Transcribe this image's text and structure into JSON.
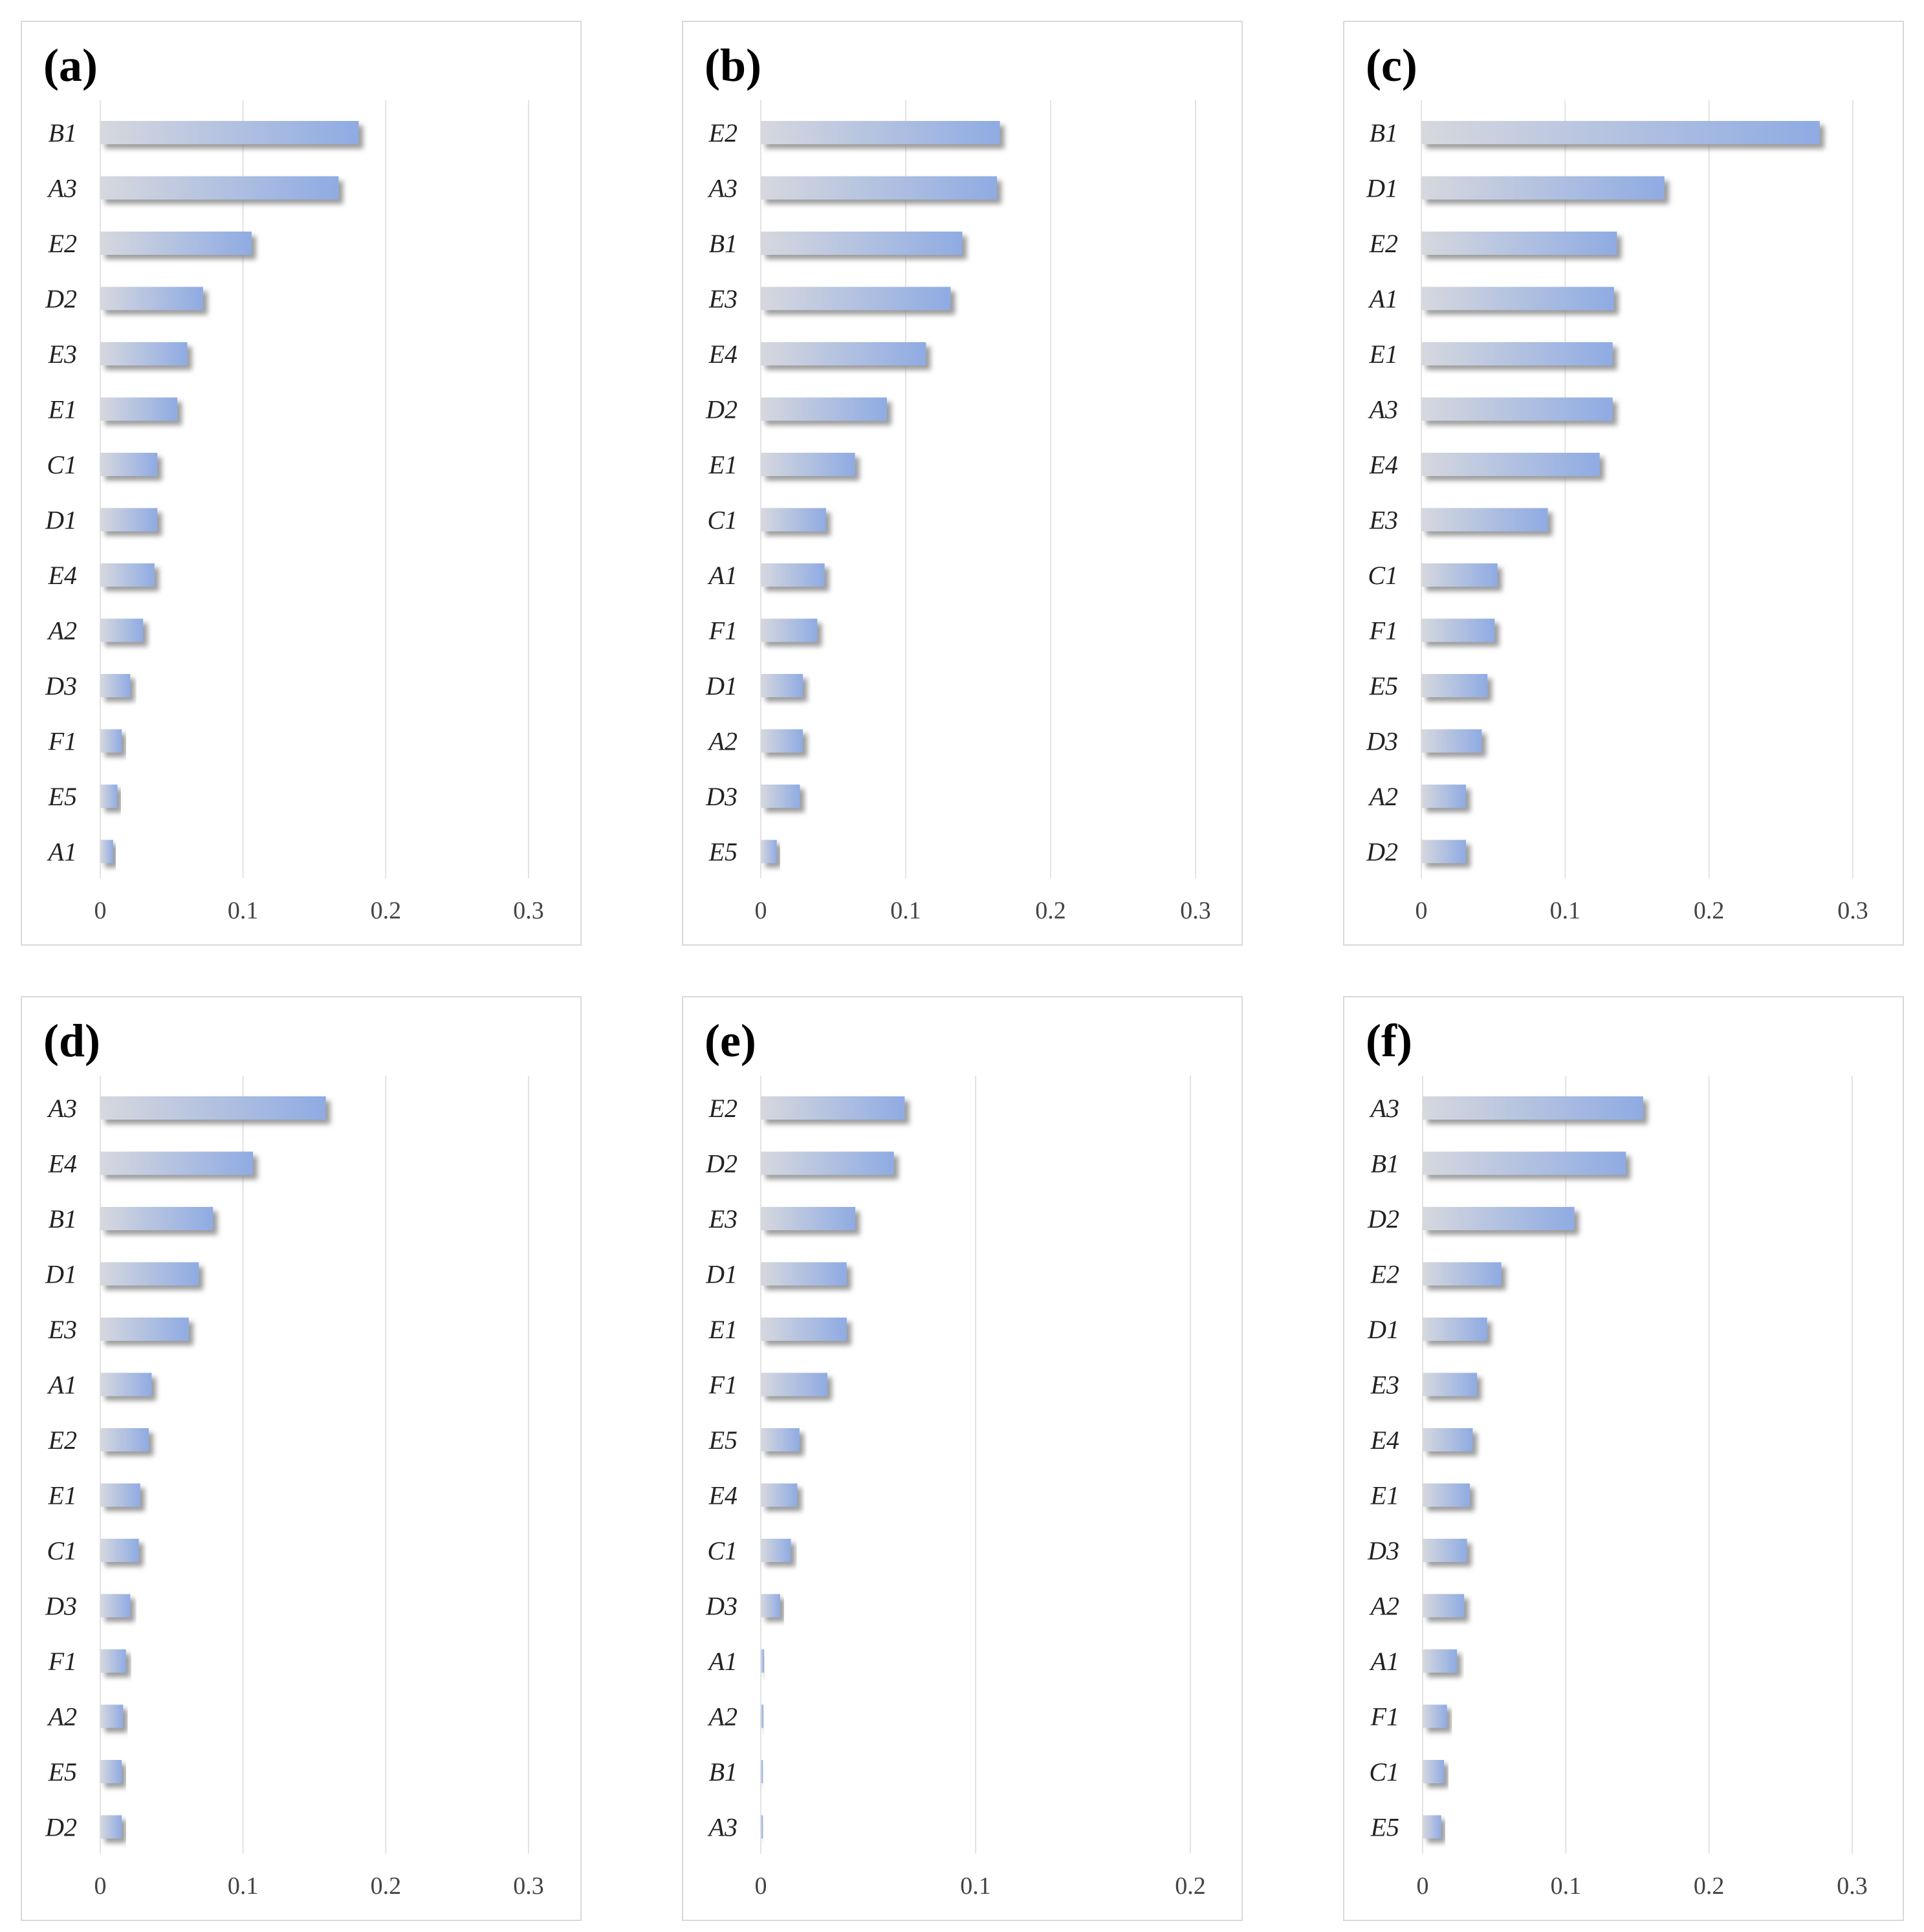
{
  "colors": {
    "bar_start": "#d6d8de",
    "bar_end": "#8fabe3",
    "shadow": "#7b7b7b",
    "grid": "#e3e3e3",
    "frame": "#d9d9d9"
  },
  "chart_data": [
    {
      "type": "bar",
      "orientation": "horizontal",
      "panel": "(a)",
      "categories": [
        "B1",
        "A3",
        "E2",
        "D2",
        "E3",
        "E1",
        "C1",
        "D1",
        "E4",
        "A2",
        "D3",
        "F1",
        "E5",
        "A1"
      ],
      "values": [
        0.181,
        0.167,
        0.106,
        0.072,
        0.061,
        0.054,
        0.04,
        0.04,
        0.038,
        0.03,
        0.021,
        0.015,
        0.012,
        0.009
      ],
      "xlim": [
        0,
        0.3
      ],
      "xticks": [
        0,
        0.1,
        0.2,
        0.3
      ],
      "xtick_labels": [
        "0",
        "0.1",
        "0.2",
        "0.3"
      ],
      "grid": true
    },
    {
      "type": "bar",
      "orientation": "horizontal",
      "panel": "(b)",
      "categories": [
        "E2",
        "A3",
        "B1",
        "E3",
        "E4",
        "D2",
        "E1",
        "C1",
        "A1",
        "F1",
        "D1",
        "A2",
        "D3",
        "E5"
      ],
      "values": [
        0.165,
        0.163,
        0.139,
        0.131,
        0.114,
        0.087,
        0.065,
        0.045,
        0.044,
        0.039,
        0.029,
        0.029,
        0.027,
        0.011
      ],
      "xlim": [
        0,
        0.3
      ],
      "xticks": [
        0,
        0.1,
        0.2,
        0.3
      ],
      "xtick_labels": [
        "0",
        "0.1",
        "0.2",
        "0.3"
      ],
      "grid": true
    },
    {
      "type": "bar",
      "orientation": "horizontal",
      "panel": "(c)",
      "categories": [
        "B1",
        "D1",
        "E2",
        "A1",
        "E1",
        "A3",
        "E4",
        "E3",
        "C1",
        "F1",
        "E5",
        "D3",
        "A2",
        "D2"
      ],
      "values": [
        0.277,
        0.169,
        0.136,
        0.134,
        0.133,
        0.133,
        0.124,
        0.088,
        0.053,
        0.051,
        0.046,
        0.042,
        0.031,
        0.031
      ],
      "xlim": [
        0,
        0.3
      ],
      "xticks": [
        0,
        0.1,
        0.2,
        0.3
      ],
      "xtick_labels": [
        "0",
        "0.1",
        "0.2",
        "0.3"
      ],
      "grid": true
    },
    {
      "type": "bar",
      "orientation": "horizontal",
      "panel": "(d)",
      "categories": [
        "A3",
        "E4",
        "B1",
        "D1",
        "E3",
        "A1",
        "E2",
        "E1",
        "C1",
        "D3",
        "F1",
        "A2",
        "E5",
        "D2"
      ],
      "values": [
        0.158,
        0.107,
        0.079,
        0.069,
        0.062,
        0.036,
        0.034,
        0.028,
        0.027,
        0.021,
        0.018,
        0.016,
        0.015,
        0.015
      ],
      "xlim": [
        0,
        0.3
      ],
      "xticks": [
        0,
        0.1,
        0.2,
        0.3
      ],
      "xtick_labels": [
        "0",
        "0.1",
        "0.2",
        "0.3"
      ],
      "grid": true
    },
    {
      "type": "bar",
      "orientation": "horizontal",
      "panel": "(e)",
      "categories": [
        "E2",
        "D2",
        "E3",
        "D1",
        "E1",
        "F1",
        "E5",
        "E4",
        "C1",
        "D3",
        "A1",
        "A2",
        "B1",
        "A3"
      ],
      "values": [
        0.067,
        0.062,
        0.044,
        0.04,
        0.04,
        0.031,
        0.018,
        0.017,
        0.014,
        0.009,
        0.0015,
        0.0012,
        0.001,
        0.001
      ],
      "xlim": [
        0,
        0.2
      ],
      "xticks": [
        0,
        0.1,
        0.2
      ],
      "xtick_labels": [
        "0",
        "0.1",
        "0.2"
      ],
      "grid": true
    },
    {
      "type": "bar",
      "orientation": "horizontal",
      "panel": "(f)",
      "categories": [
        "A3",
        "B1",
        "D2",
        "E2",
        "D1",
        "E3",
        "E4",
        "E1",
        "D3",
        "A2",
        "A1",
        "F1",
        "C1",
        "E5"
      ],
      "values": [
        0.154,
        0.142,
        0.106,
        0.055,
        0.045,
        0.038,
        0.035,
        0.033,
        0.031,
        0.029,
        0.024,
        0.017,
        0.015,
        0.013
      ],
      "xlim": [
        0,
        0.3
      ],
      "xticks": [
        0,
        0.1,
        0.2,
        0.3
      ],
      "xtick_labels": [
        "0",
        "0.1",
        "0.2",
        "0.3"
      ],
      "grid": true
    }
  ]
}
